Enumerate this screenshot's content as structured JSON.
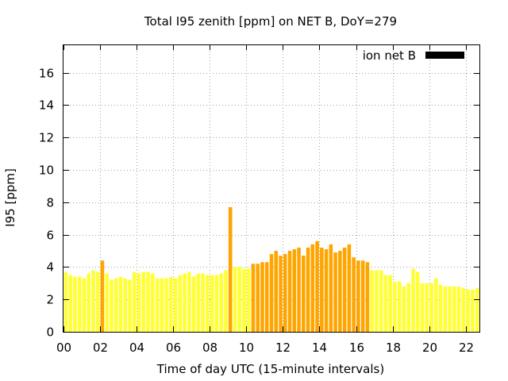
{
  "chart_data": {
    "type": "bar",
    "title": "Total I95 zenith [ppm] on NET B, DoY=279",
    "xlabel": "Time of day UTC (15-minute intervals)",
    "ylabel": "I95 [ppm]",
    "xlim": [
      0,
      22.75
    ],
    "ylim": [
      0,
      17.75
    ],
    "x_ticks": [
      "00",
      "02",
      "04",
      "06",
      "08",
      "10",
      "12",
      "14",
      "16",
      "18",
      "20",
      "22"
    ],
    "y_ticks": [
      "0",
      "2",
      "4",
      "6",
      "8",
      "10",
      "12",
      "14",
      "16"
    ],
    "grid": true,
    "legend": {
      "position": "top-right",
      "entries": [
        {
          "label": "ion net B",
          "color": "#000000"
        }
      ]
    },
    "series": [
      {
        "values": [
          3.7,
          3.5,
          3.4,
          3.4,
          3.3,
          3.6,
          3.8,
          3.7,
          4.4,
          3.6,
          3.2,
          3.3,
          3.4,
          3.3,
          3.2,
          3.7,
          3.6,
          3.7,
          3.7,
          3.6,
          3.3,
          3.3,
          3.3,
          3.4,
          3.3,
          3.5,
          3.6,
          3.7,
          3.4,
          3.6,
          3.6,
          3.5,
          3.5,
          3.5,
          3.6,
          3.8,
          7.7,
          4.0,
          4.0,
          3.9,
          3.9,
          4.2,
          4.2,
          4.3,
          4.3,
          4.8,
          5.0,
          4.7,
          4.8,
          5.0,
          5.1,
          5.2,
          4.7,
          5.2,
          5.4,
          5.6,
          5.2,
          5.1,
          5.4,
          4.9,
          5.0,
          5.2,
          5.4,
          4.6,
          4.4,
          4.4,
          4.3,
          3.8,
          3.8,
          3.8,
          3.5,
          3.5,
          3.1,
          3.1,
          2.8,
          3.0,
          3.9,
          3.7,
          3.0,
          3.0,
          3.0,
          3.3,
          2.9,
          2.8,
          2.8,
          2.8,
          2.8,
          2.7,
          2.6,
          2.6,
          2.7
        ],
        "colors": [
          "#ffff33",
          "#ffff33",
          "#ffff33",
          "#ffff33",
          "#ffff33",
          "#ffff33",
          "#ffff33",
          "#ffff33",
          "#ffa500",
          "#ffff33",
          "#ffff33",
          "#ffff33",
          "#ffff33",
          "#ffff33",
          "#ffff33",
          "#ffff33",
          "#ffff33",
          "#ffff33",
          "#ffff33",
          "#ffff33",
          "#ffff33",
          "#ffff33",
          "#ffff33",
          "#ffff33",
          "#ffff33",
          "#ffff33",
          "#ffff33",
          "#ffff33",
          "#ffff33",
          "#ffff33",
          "#ffff33",
          "#ffff33",
          "#ffff33",
          "#ffff33",
          "#ffff33",
          "#ffff33",
          "#ffa500",
          "#ffff33",
          "#ffff33",
          "#ffff33",
          "#ffff33",
          "#ffa500",
          "#ffa500",
          "#ffa500",
          "#ffa500",
          "#ffa500",
          "#ffa500",
          "#ffa500",
          "#ffa500",
          "#ffa500",
          "#ffa500",
          "#ffa500",
          "#ffa500",
          "#ffa500",
          "#ffa500",
          "#ffa500",
          "#ffa500",
          "#ffa500",
          "#ffa500",
          "#ffa500",
          "#ffa500",
          "#ffa500",
          "#ffa500",
          "#ffa500",
          "#ffa500",
          "#ffa500",
          "#ffa500",
          "#ffff33",
          "#ffff33",
          "#ffff33",
          "#ffff33",
          "#ffff33",
          "#ffff33",
          "#ffff33",
          "#ffff33",
          "#ffff33",
          "#ffff33",
          "#ffff33",
          "#ffff33",
          "#ffff33",
          "#ffff33",
          "#ffff33",
          "#ffff33",
          "#ffff33",
          "#ffff33",
          "#ffff33",
          "#ffff33",
          "#ffff33",
          "#ffff33",
          "#ffff33",
          "#ffff33"
        ]
      }
    ]
  }
}
